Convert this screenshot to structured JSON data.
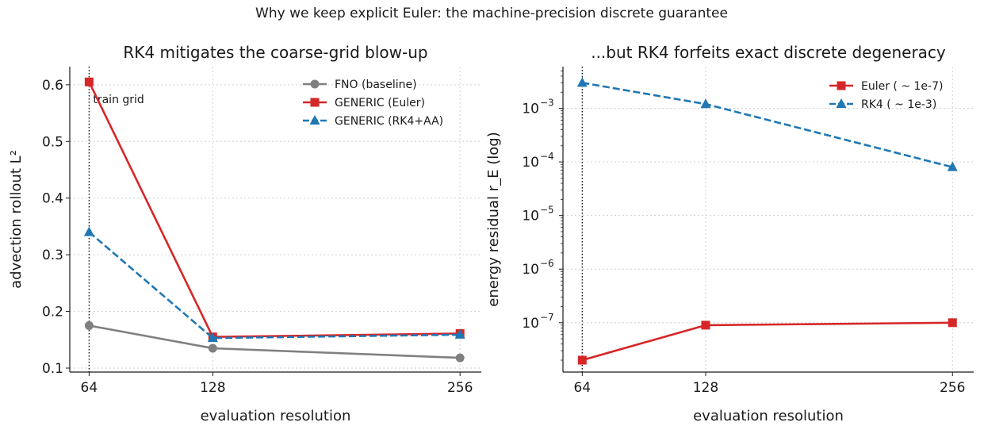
{
  "figure": {
    "suptitle": "Why we keep explicit Euler: the machine-precision discrete guarantee"
  },
  "chart_data": [
    {
      "type": "line",
      "title": "RK4 mitigates the coarse-grid blow-up",
      "xlabel": "evaluation resolution",
      "ylabel": "advection rollout L²",
      "x": [
        64,
        128,
        256
      ],
      "xticks": [
        64,
        128,
        256
      ],
      "xlim": [
        54,
        267
      ],
      "ylim": [
        0.093,
        0.632
      ],
      "yticks": [
        0.1,
        0.2,
        0.3,
        0.4,
        0.5,
        0.6
      ],
      "ytick_labels": [
        "0.1",
        "0.2",
        "0.3",
        "0.4",
        "0.5",
        "0.6"
      ],
      "yscale": "linear",
      "grid": true,
      "legend_position": "top-right",
      "annotation": {
        "text": "train grid",
        "x": 64
      },
      "series": [
        {
          "name": "FNO (baseline)",
          "values": [
            0.175,
            0.135,
            0.118
          ],
          "color": "#808080",
          "marker": "circle",
          "dash": "solid"
        },
        {
          "name": "GENERIC (Euler)",
          "values": [
            0.605,
            0.155,
            0.161
          ],
          "color": "#d62728",
          "marker": "square",
          "dash": "solid"
        },
        {
          "name": "GENERIC (RK4+AA)",
          "values": [
            0.34,
            0.153,
            0.159
          ],
          "color": "#1f77b4",
          "marker": "triangle",
          "dash": "dashed"
        }
      ]
    },
    {
      "type": "line",
      "title": "...but RK4 forfeits exact discrete degeneracy",
      "xlabel": "evaluation resolution",
      "ylabel": "energy residual r_E (log)",
      "x": [
        64,
        128,
        256
      ],
      "xticks": [
        64,
        128,
        256
      ],
      "xlim": [
        54,
        267
      ],
      "ylim": [
        1.2e-08,
        0.006
      ],
      "yticks": [
        1e-07,
        1e-06,
        1e-05,
        0.0001,
        0.001
      ],
      "ytick_labels": [
        "10",
        "10",
        "10",
        "10",
        "10"
      ],
      "ytick_exponents": [
        "−7",
        "−6",
        "−5",
        "−4",
        "−3"
      ],
      "yscale": "log",
      "grid": true,
      "legend_position": "top-right",
      "annotation": {
        "x": 64
      },
      "series": [
        {
          "name": "Euler ( ~ 1e-7)",
          "values": [
            2e-08,
            9e-08,
            1e-07
          ],
          "color": "#d62728",
          "marker": "square",
          "dash": "solid"
        },
        {
          "name": "RK4 ( ~ 1e-3)",
          "values": [
            0.003,
            0.0012,
            8e-05
          ],
          "color": "#1f77b4",
          "marker": "triangle",
          "dash": "dashed"
        }
      ]
    }
  ]
}
